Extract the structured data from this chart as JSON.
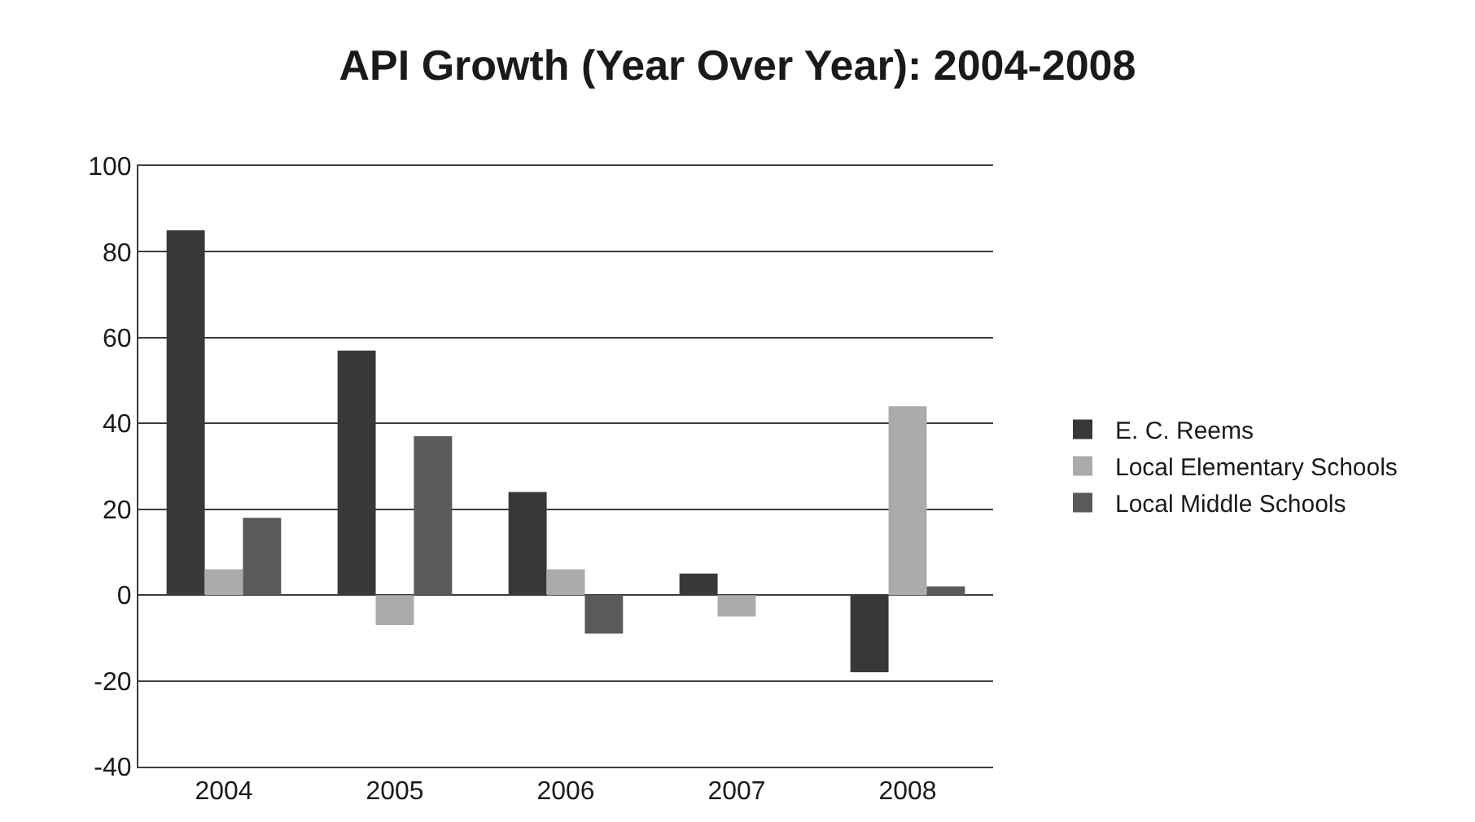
{
  "chart_data": {
    "type": "bar",
    "title": "API Growth (Year Over Year): 2004-2008",
    "categories": [
      "2004",
      "2005",
      "2006",
      "2007",
      "2008"
    ],
    "series": [
      {
        "name": "E. C. Reems",
        "color": "#383838",
        "values": [
          85,
          57,
          24,
          5,
          -18
        ]
      },
      {
        "name": "Local Elementary Schools",
        "color": "#ababab",
        "values": [
          6,
          -7,
          6,
          -5,
          44
        ]
      },
      {
        "name": "Local Middle Schools",
        "color": "#5a5a5a",
        "values": [
          18,
          37,
          -9,
          null,
          2
        ]
      }
    ],
    "ylim": [
      -40,
      100
    ],
    "yticks": [
      -40,
      -20,
      0,
      20,
      40,
      60,
      80,
      100
    ],
    "grid": "y",
    "legend": "right"
  }
}
